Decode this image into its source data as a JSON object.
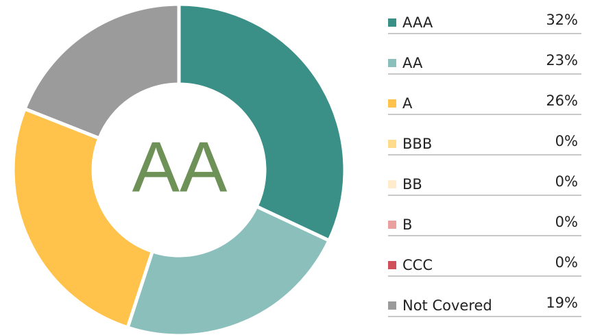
{
  "chart_data": {
    "type": "pie",
    "center_label": "AA",
    "categories": [
      "AAA",
      "AA",
      "A",
      "BBB",
      "BB",
      "B",
      "CCC",
      "Not Covered"
    ],
    "values": [
      32,
      23,
      26,
      0,
      0,
      0,
      0,
      19
    ],
    "value_labels": [
      "32%",
      "23%",
      "26%",
      "0%",
      "0%",
      "0%",
      "0%",
      "19%"
    ],
    "colors": [
      "#3a8f87",
      "#8bbfbb",
      "#ffc24a",
      "#ffdb8e",
      "#ffeccc",
      "#e8a0a0",
      "#d0505a",
      "#9b9b9c"
    ]
  }
}
